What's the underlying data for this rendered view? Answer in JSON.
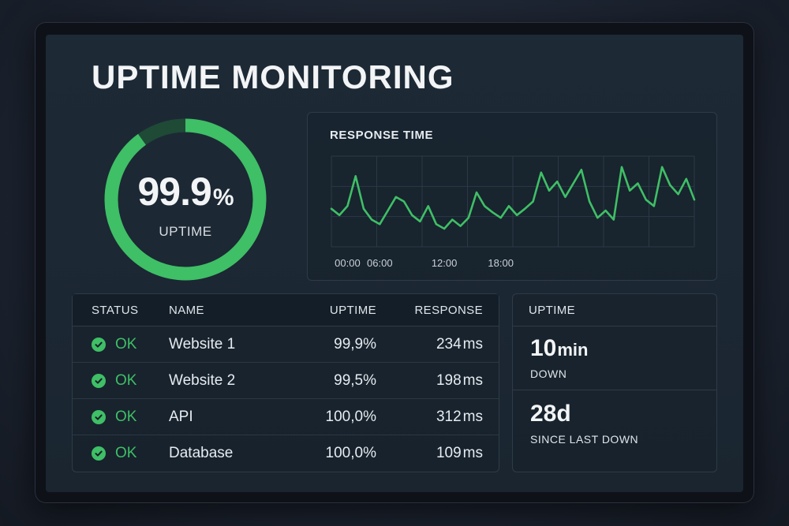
{
  "dashboard": {
    "title": "UPTIME MONITORING"
  },
  "gauge": {
    "value": "99.9",
    "unit": "%",
    "label": "UPTIME",
    "fraction": 0.9,
    "color_fg": "#3fbf66",
    "color_bg": "#1f4a36"
  },
  "chart": {
    "title": "RESPONSE TIME"
  },
  "chart_data": {
    "type": "line",
    "title": "RESPONSE TIME",
    "x_tick_labels": [
      "00:00",
      "06:00",
      "12:00",
      "18:00"
    ],
    "x_tick_positions": [
      2,
      6,
      14,
      21
    ],
    "ylim": [
      0,
      100
    ],
    "series": [
      {
        "name": "response",
        "color": "#3fbf66",
        "values": [
          42,
          35,
          45,
          78,
          42,
          30,
          25,
          40,
          55,
          50,
          35,
          28,
          45,
          25,
          20,
          30,
          23,
          32,
          60,
          45,
          38,
          32,
          45,
          35,
          42,
          50,
          82,
          62,
          72,
          55,
          70,
          85,
          50,
          32,
          40,
          30,
          88,
          62,
          70,
          52,
          45,
          88,
          68,
          58,
          75,
          52
        ]
      }
    ]
  },
  "table": {
    "headers": {
      "status": "STATUS",
      "name": "NAME",
      "uptime": "UPTIME",
      "response": "RESPONSE"
    },
    "rows": [
      {
        "status": "OK",
        "name": "Website 1",
        "uptime": "99,9%",
        "response": "234",
        "unit": "ms"
      },
      {
        "status": "OK",
        "name": "Website 2",
        "uptime": "99,5%",
        "response": "198",
        "unit": "ms"
      },
      {
        "status": "OK",
        "name": "API",
        "uptime": "100,0%",
        "response": "312",
        "unit": "ms"
      },
      {
        "status": "OK",
        "name": "Database",
        "uptime": "100,0%",
        "response": "109",
        "unit": "ms"
      }
    ]
  },
  "uptime_panel": {
    "title": "UPTIME",
    "down_value": "10",
    "down_unit": "min",
    "down_label": "DOWN",
    "since_value": "28d",
    "since_label": "SINCE LAST DOWN"
  },
  "colors": {
    "accent": "#3fbf66",
    "background": "#1d2a36"
  }
}
